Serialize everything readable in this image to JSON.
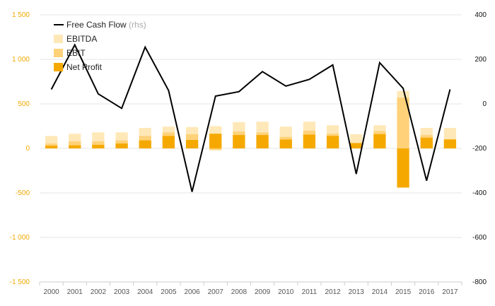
{
  "chart_data": {
    "type": "bar",
    "categories": [
      "2000",
      "2001",
      "2002",
      "2003",
      "2004",
      "2005",
      "2006",
      "2007",
      "2008",
      "2009",
      "2010",
      "2011",
      "2012",
      "2013",
      "2014",
      "2015",
      "2016",
      "2017"
    ],
    "series": [
      {
        "name": "EBITDA",
        "axis": "left",
        "kind": "bar",
        "values": [
          140,
          165,
          180,
          180,
          230,
          245,
          240,
          250,
          295,
          300,
          245,
          300,
          260,
          160,
          260,
          645,
          230,
          230
        ]
      },
      {
        "name": "EBIT",
        "axis": "left",
        "kind": "bar",
        "values": [
          55,
          80,
          80,
          90,
          140,
          180,
          160,
          140,
          190,
          180,
          130,
          200,
          165,
          55,
          195,
          570,
          150,
          105
        ]
      },
      {
        "name": "Net Profit",
        "axis": "left",
        "kind": "bar",
        "values": [
          30,
          35,
          40,
          55,
          90,
          140,
          95,
          165,
          150,
          150,
          100,
          155,
          140,
          60,
          160,
          -440,
          120,
          100
        ]
      },
      {
        "name": "Free Cash Flow",
        "label_suffix": "(rhs)",
        "axis": "right",
        "kind": "line",
        "values": [
          65,
          265,
          45,
          -20,
          255,
          60,
          -395,
          35,
          55,
          145,
          80,
          110,
          175,
          -315,
          185,
          70,
          -345,
          65
        ]
      }
    ],
    "secondary_series": [
      {
        "name": "EBIT",
        "values": [
          0,
          0,
          0,
          0,
          0,
          0,
          0,
          -20,
          0,
          0,
          0,
          0,
          0,
          0,
          0,
          0,
          0,
          0
        ]
      }
    ],
    "y_left": {
      "range": [
        -1500,
        1500
      ],
      "ticks": [
        1500,
        1000,
        500,
        0,
        -500,
        -1000,
        -1500
      ],
      "tick_labels": [
        "1 500",
        "1 000",
        "500",
        "0",
        "-500",
        "-1 000",
        "-1 500"
      ]
    },
    "y_right": {
      "range": [
        -800,
        400
      ],
      "ticks": [
        400,
        200,
        0,
        -200,
        -400,
        -600,
        -800
      ],
      "tick_labels": [
        "400",
        "200",
        "0",
        "-200",
        "-400",
        "-600",
        "-800"
      ]
    },
    "grid": true,
    "legend_position": "top-left",
    "colors": {
      "EBITDA": "#ffe8b8",
      "EBIT": "#ffd27a",
      "Net Profit": "#f5a900",
      "Free Cash Flow": "#000000",
      "left_axis_text": "#f0a800",
      "grid": "#e6e6e6"
    }
  },
  "legend": {
    "items": [
      {
        "label": "Free Cash Flow",
        "suffix": "(rhs)",
        "icon": "line"
      },
      {
        "label": "EBITDA",
        "suffix": "",
        "icon": "box"
      },
      {
        "label": "EBIT",
        "suffix": "",
        "icon": "box"
      },
      {
        "label": "Net Profit",
        "suffix": "",
        "icon": "box"
      }
    ]
  }
}
